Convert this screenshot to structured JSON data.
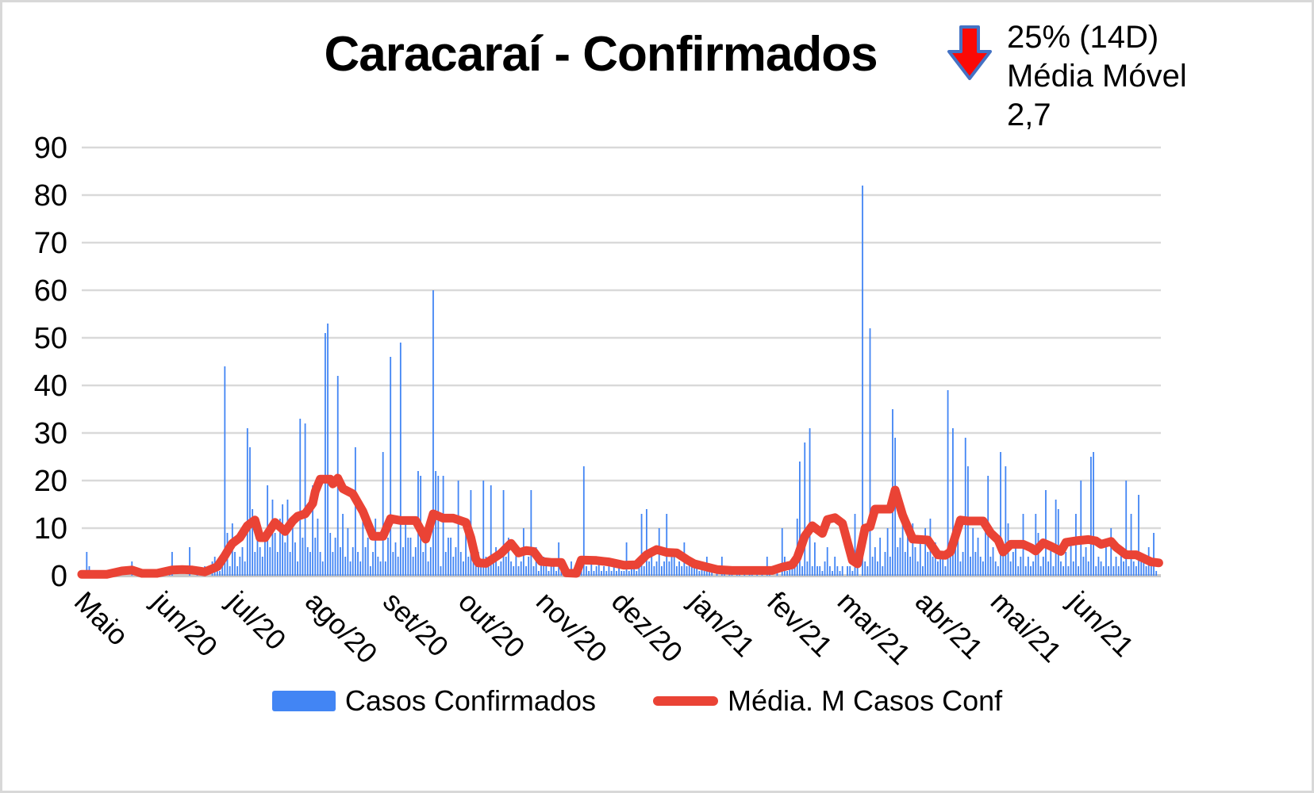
{
  "title": "Caracaraí - Confirmados",
  "trend_badge": {
    "direction": "down",
    "percent_label": "25% (14D)",
    "ma_label": "Média Móvel",
    "ma_value": "2,7"
  },
  "colors": {
    "bars": "#4285F4",
    "line": "#EA4335",
    "arrow_fill": "#FB0905",
    "arrow_outline": "#4472C4",
    "grid": "#D9D9D9",
    "axis_line": "#C9C9C9",
    "text": "#000000"
  },
  "chart_data": {
    "type": "bar",
    "title": "Caracaraí - Confirmados",
    "xlabel": "",
    "ylabel": "",
    "ylim": [
      0,
      90
    ],
    "y_ticks": [
      0,
      10,
      20,
      30,
      40,
      50,
      60,
      70,
      80,
      90
    ],
    "grid": true,
    "legend_position": "bottom",
    "x_unit": "day",
    "x_ticks": [
      {
        "label": "Maio",
        "day": 9
      },
      {
        "label": "jun/20",
        "day": 40
      },
      {
        "label": "jul/20",
        "day": 70
      },
      {
        "label": "ago/20",
        "day": 101
      },
      {
        "label": "set/20",
        "day": 132
      },
      {
        "label": "out/20",
        "day": 162
      },
      {
        "label": "nov/20",
        "day": 193
      },
      {
        "label": "dez/20",
        "day": 223
      },
      {
        "label": "jan/21",
        "day": 254
      },
      {
        "label": "fev/21",
        "day": 285
      },
      {
        "label": "mar/21",
        "day": 313
      },
      {
        "label": "abr/21",
        "day": 344
      },
      {
        "label": "mai/21",
        "day": 374
      },
      {
        "label": "jun/21",
        "day": 405
      }
    ],
    "series": [
      {
        "name": "Casos Confirmados",
        "type": "bar",
        "color": "#4285F4",
        "values": [
          0,
          0,
          5,
          2,
          0,
          0,
          0,
          0,
          0,
          0,
          0,
          0,
          0,
          0,
          0,
          0,
          0,
          0,
          0,
          0,
          3,
          0,
          0,
          0,
          0,
          0,
          0,
          0,
          0,
          0,
          0,
          0,
          0,
          0,
          0,
          2,
          5,
          0,
          0,
          0,
          0,
          0,
          0,
          6,
          0,
          0,
          1,
          0,
          0,
          2,
          0,
          0,
          3,
          4,
          2,
          1,
          3,
          44,
          9,
          2,
          11,
          5,
          2,
          4,
          6,
          3,
          31,
          27,
          14,
          5,
          10,
          6,
          4,
          8,
          19,
          6,
          16,
          9,
          5,
          12,
          15,
          7,
          16,
          5,
          10,
          7,
          3,
          33,
          8,
          32,
          6,
          5,
          19,
          8,
          12,
          5,
          3,
          51,
          53,
          9,
          5,
          8,
          42,
          6,
          13,
          4,
          10,
          3,
          6,
          27,
          5,
          3,
          15,
          6,
          8,
          2,
          5,
          12,
          4,
          3,
          26,
          3,
          8,
          46,
          5,
          7,
          4,
          49,
          6,
          12,
          8,
          8,
          4,
          6,
          22,
          21,
          5,
          8,
          3,
          6,
          60,
          22,
          21,
          2,
          21,
          5,
          8,
          8,
          4,
          6,
          20,
          5,
          3,
          10,
          4,
          18,
          6,
          3,
          5,
          2,
          20,
          4,
          2,
          19,
          3,
          6,
          2,
          3,
          18,
          4,
          8,
          3,
          2,
          5,
          2,
          3,
          10,
          2,
          4,
          18,
          2,
          6,
          1,
          3,
          4,
          2,
          1,
          3,
          2,
          1,
          7,
          1,
          2,
          2,
          1,
          3,
          1,
          2,
          1,
          4,
          23,
          2,
          1,
          3,
          1,
          2,
          3,
          1,
          2,
          1,
          2,
          1,
          3,
          1,
          2,
          1,
          1,
          7,
          1,
          2,
          2,
          1,
          3,
          13,
          2,
          14,
          3,
          4,
          2,
          3,
          10,
          2,
          3,
          13,
          3,
          5,
          5,
          2,
          3,
          2,
          7,
          2,
          3,
          2,
          2,
          3,
          1,
          2,
          1,
          4,
          1,
          1,
          0,
          2,
          0,
          4,
          1,
          0,
          2,
          1,
          0,
          1,
          1,
          0,
          2,
          0,
          1,
          2,
          0,
          1,
          0,
          1,
          0,
          4,
          1,
          0,
          0,
          2,
          0,
          10,
          4,
          1,
          2,
          2,
          3,
          12,
          24,
          2,
          28,
          3,
          31,
          2,
          7,
          2,
          2,
          1,
          3,
          6,
          2,
          1,
          4,
          2,
          1,
          2,
          0,
          2,
          2,
          1,
          13,
          2,
          0,
          82,
          3,
          2,
          52,
          4,
          6,
          3,
          8,
          2,
          5,
          10,
          4,
          35,
          29,
          6,
          8,
          12,
          5,
          9,
          4,
          11,
          6,
          3,
          8,
          2,
          10,
          5,
          12,
          4,
          7,
          3,
          4,
          5,
          2,
          39,
          4,
          31,
          6,
          8,
          3,
          5,
          29,
          23,
          4,
          10,
          5,
          8,
          4,
          3,
          12,
          21,
          4,
          6,
          3,
          2,
          26,
          5,
          23,
          11,
          3,
          5,
          6,
          2,
          4,
          13,
          2,
          4,
          2,
          3,
          13,
          9,
          2,
          4,
          18,
          3,
          7,
          2,
          16,
          14,
          3,
          2,
          5,
          2,
          8,
          3,
          13,
          2,
          20,
          4,
          6,
          3,
          25,
          26,
          2,
          4,
          3,
          2,
          6,
          2,
          10,
          2,
          4,
          2,
          5,
          3,
          20,
          2,
          13,
          3,
          2,
          17,
          3,
          4,
          2,
          6,
          2,
          9,
          1
        ]
      },
      {
        "name": "Média. M Casos Conf",
        "type": "line",
        "color": "#EA4335",
        "points": [
          [
            0,
            0.3
          ],
          [
            10,
            0.3
          ],
          [
            16,
            1.0
          ],
          [
            20,
            1.2
          ],
          [
            24,
            0.5
          ],
          [
            30,
            0.5
          ],
          [
            36,
            1.2
          ],
          [
            40,
            1.3
          ],
          [
            44,
            1.2
          ],
          [
            49,
            0.8
          ],
          [
            54,
            1.9
          ],
          [
            57,
            4.2
          ],
          [
            59,
            6.0
          ],
          [
            60,
            6.8
          ],
          [
            63,
            8.0
          ],
          [
            66,
            10.5
          ],
          [
            69,
            11.7
          ],
          [
            71,
            8.0
          ],
          [
            73,
            8.0
          ],
          [
            77,
            11.2
          ],
          [
            81,
            9.3
          ],
          [
            84,
            11.5
          ],
          [
            86,
            12.5
          ],
          [
            89,
            13.0
          ],
          [
            92,
            15.2
          ],
          [
            93,
            17.7
          ],
          [
            95,
            20.3
          ],
          [
            99,
            20.3
          ],
          [
            100,
            19.3
          ],
          [
            102,
            20.5
          ],
          [
            104,
            18.3
          ],
          [
            108,
            17.2
          ],
          [
            112,
            13.5
          ],
          [
            116,
            8.3
          ],
          [
            120,
            8.3
          ],
          [
            123,
            12.0
          ],
          [
            127,
            11.6
          ],
          [
            133,
            11.6
          ],
          [
            137,
            7.7
          ],
          [
            140,
            13.0
          ],
          [
            144,
            12.1
          ],
          [
            148,
            12.1
          ],
          [
            153,
            11.2
          ],
          [
            155,
            8.0
          ],
          [
            157,
            3.5
          ],
          [
            158,
            2.7
          ],
          [
            161,
            2.6
          ],
          [
            167,
            4.7
          ],
          [
            171,
            6.8
          ],
          [
            174,
            4.8
          ],
          [
            177,
            5.3
          ],
          [
            180,
            5.1
          ],
          [
            183,
            3.0
          ],
          [
            187,
            2.8
          ],
          [
            191,
            2.8
          ],
          [
            193,
            0.6
          ],
          [
            197,
            0.5
          ],
          [
            199,
            3.3
          ],
          [
            205,
            3.2
          ],
          [
            210,
            2.9
          ],
          [
            216,
            2.2
          ],
          [
            221,
            2.3
          ],
          [
            225,
            4.4
          ],
          [
            229,
            5.5
          ],
          [
            233,
            4.9
          ],
          [
            237,
            4.8
          ],
          [
            241,
            3.4
          ],
          [
            244,
            2.5
          ],
          [
            253,
            1.3
          ],
          [
            259,
            1.1
          ],
          [
            275,
            1.1
          ],
          [
            279,
            1.8
          ],
          [
            283,
            2.3
          ],
          [
            285,
            3.8
          ],
          [
            288,
            8.3
          ],
          [
            291,
            10.5
          ],
          [
            295,
            8.9
          ],
          [
            297,
            11.8
          ],
          [
            300,
            12.2
          ],
          [
            303,
            11.0
          ],
          [
            307,
            3.2
          ],
          [
            309,
            2.5
          ],
          [
            312,
            10.0
          ],
          [
            314,
            10.3
          ],
          [
            316,
            14.0
          ],
          [
            322,
            14.0
          ],
          [
            324,
            18.0
          ],
          [
            327,
            12.7
          ],
          [
            331,
            7.7
          ],
          [
            337,
            7.5
          ],
          [
            341,
            4.4
          ],
          [
            344,
            4.3
          ],
          [
            346,
            5.0
          ],
          [
            350,
            11.7
          ],
          [
            353,
            11.5
          ],
          [
            359,
            11.5
          ],
          [
            362,
            9.0
          ],
          [
            365,
            7.5
          ],
          [
            367,
            5.0
          ],
          [
            370,
            6.6
          ],
          [
            375,
            6.6
          ],
          [
            378,
            5.9
          ],
          [
            380,
            5.2
          ],
          [
            383,
            6.9
          ],
          [
            386,
            6.2
          ],
          [
            390,
            5.1
          ],
          [
            392,
            7.0
          ],
          [
            397,
            7.4
          ],
          [
            401,
            7.6
          ],
          [
            404,
            7.3
          ],
          [
            406,
            6.6
          ],
          [
            410,
            7.2
          ],
          [
            412,
            6.0
          ],
          [
            414,
            5.2
          ],
          [
            416,
            4.4
          ],
          [
            420,
            4.4
          ],
          [
            424,
            3.4
          ],
          [
            426,
            2.9
          ],
          [
            429,
            2.7
          ]
        ]
      }
    ]
  }
}
